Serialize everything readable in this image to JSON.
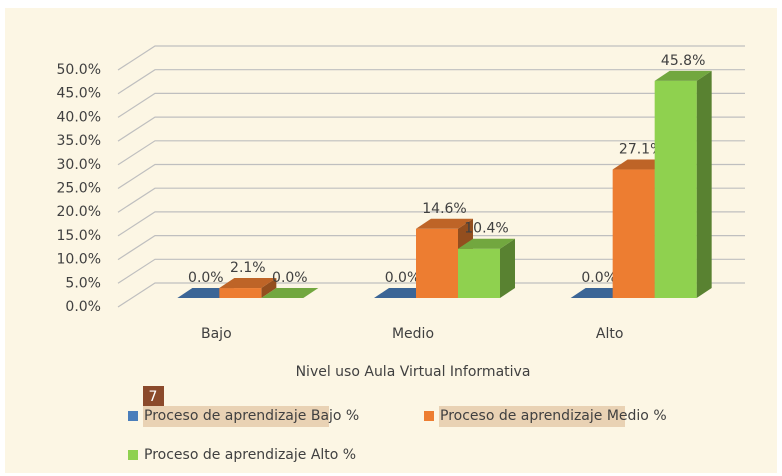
{
  "chart_data": {
    "type": "bar",
    "x_label": "Nivel uso Aula Virtual Informativa",
    "annotation": "7",
    "categories": [
      "Bajo",
      "Medio",
      "Alto"
    ],
    "series": [
      {
        "name": "Proceso de aprendizaje Bajo %",
        "color": "#4a7ebb",
        "values": [
          0,
          0,
          0
        ],
        "value_labels": [
          "0.0%",
          "0.0%",
          "0.0%"
        ]
      },
      {
        "name": "Proceso de aprendizaje Medio %",
        "color": "#ed7d31",
        "values": [
          2.1,
          14.6,
          27.1
        ],
        "value_labels": [
          "2.1%",
          "14.6%",
          "27.1%"
        ]
      },
      {
        "name": "Proceso de aprendizaje Alto %",
        "color": "#8fd14f",
        "values": [
          0,
          10.4,
          45.8
        ],
        "value_labels": [
          "0.0%",
          "10.4%",
          "45.8%"
        ]
      }
    ],
    "ylim": [
      0,
      50
    ],
    "yticks": [
      {
        "value": 0,
        "label": "0.0%"
      },
      {
        "value": 5,
        "label": "5.0%"
      },
      {
        "value": 10,
        "label": "10.0%"
      },
      {
        "value": 15,
        "label": "15.0%"
      },
      {
        "value": 20,
        "label": "20.0%"
      },
      {
        "value": 25,
        "label": "25.0%"
      },
      {
        "value": 30,
        "label": "30.0%"
      },
      {
        "value": 35,
        "label": "35.0%"
      },
      {
        "value": 40,
        "label": "40.0%"
      },
      {
        "value": 45,
        "label": "45.0%"
      },
      {
        "value": 50,
        "label": "50.0%"
      }
    ],
    "grid": true
  }
}
